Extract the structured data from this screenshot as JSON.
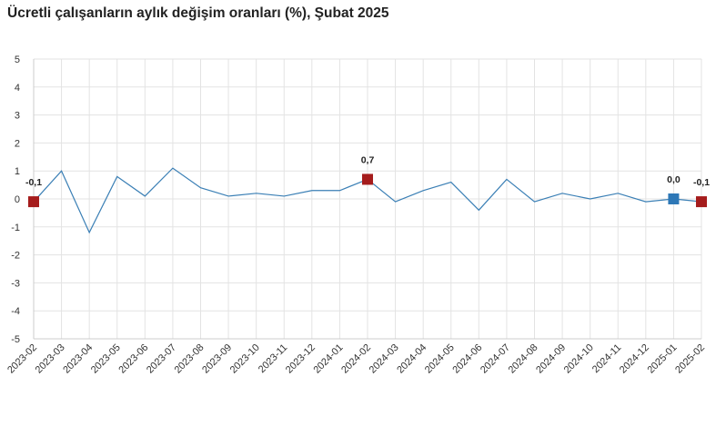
{
  "title": "Ücretli çalışanların aylık değişim oranları (%), Şubat 2025",
  "chart_data": {
    "type": "line",
    "title": "Ücretli çalışanların aylık değişim oranları (%), Şubat 2025",
    "xlabel": "",
    "ylabel": "",
    "ylim": [
      -5,
      5
    ],
    "yticks": [
      5,
      4,
      3,
      2,
      1,
      0,
      -1,
      -2,
      -3,
      -4,
      -5
    ],
    "grid": true,
    "legend": "none",
    "categories": [
      "2023-02",
      "2023-03",
      "2023-04",
      "2023-05",
      "2023-06",
      "2023-07",
      "2023-08",
      "2023-09",
      "2023-10",
      "2023-11",
      "2023-12",
      "2024-01",
      "2024-02",
      "2024-03",
      "2024-04",
      "2024-05",
      "2024-06",
      "2024-07",
      "2024-08",
      "2024-09",
      "2024-10",
      "2024-11",
      "2024-12",
      "2025-01",
      "2025-02"
    ],
    "series": [
      {
        "values": [
          -0.1,
          1.0,
          -1.2,
          0.8,
          0.1,
          1.1,
          0.4,
          0.1,
          0.2,
          0.1,
          0.3,
          0.3,
          0.7,
          -0.1,
          0.3,
          0.6,
          -0.4,
          0.7,
          -0.1,
          0.2,
          0.0,
          0.2,
          -0.1,
          0.0,
          -0.1
        ],
        "color": "#3a7fb5"
      }
    ],
    "highlighted_points": [
      {
        "index": 0,
        "label": "-0,1",
        "color": "#a51c1c"
      },
      {
        "index": 12,
        "label": "0,7",
        "color": "#a51c1c"
      },
      {
        "index": 23,
        "label": "0,0",
        "color": "#2e78b7"
      },
      {
        "index": 24,
        "label": "-0,1",
        "color": "#a51c1c"
      }
    ]
  }
}
